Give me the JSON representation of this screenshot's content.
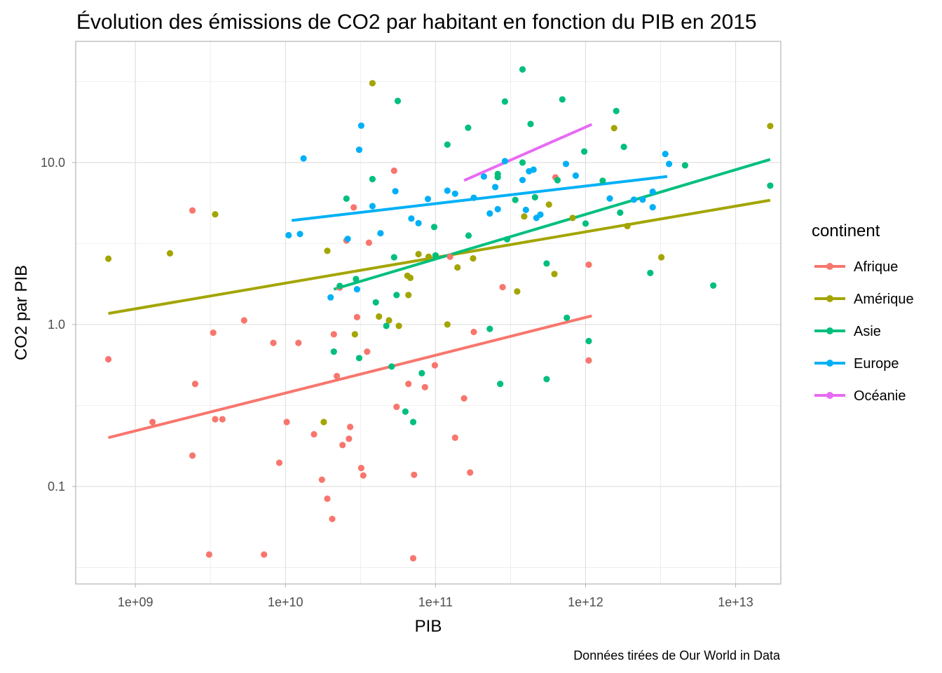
{
  "chart_data": {
    "type": "scatter",
    "title": "Évolution des émissions de CO2 par habitant en fonction du PIB en 2015",
    "xlabel": "PIB",
    "ylabel": "CO2 par PIB",
    "caption": "Données tirées de Our World in Data",
    "x_scale": "log10",
    "y_scale": "log10",
    "xlim": [
      400000000,
      20000000000000
    ],
    "ylim": [
      0.025,
      56
    ],
    "x_ticks": [
      {
        "value": 1000000000,
        "label": "1e+09"
      },
      {
        "value": 10000000000,
        "label": "1e+10"
      },
      {
        "value": 100000000000,
        "label": "1e+11"
      },
      {
        "value": 1000000000000,
        "label": "1e+12"
      },
      {
        "value": 10000000000000,
        "label": "1e+13"
      }
    ],
    "y_ticks": [
      {
        "value": 0.1,
        "label": "0.1"
      },
      {
        "value": 1,
        "label": "1.0"
      },
      {
        "value": 10,
        "label": "10.0"
      }
    ],
    "grid": true,
    "legend": {
      "title": "continent",
      "position": "right"
    },
    "series": [
      {
        "name": "Afrique",
        "color": "#F8766D",
        "points": [
          [
            660000000.0,
            0.61
          ],
          [
            1300000000.0,
            0.25
          ],
          [
            2400000000.0,
            5.06
          ],
          [
            2400000000.0,
            0.155
          ],
          [
            2500000000.0,
            0.43
          ],
          [
            3100000000.0,
            0.038
          ],
          [
            3300000000.0,
            0.89
          ],
          [
            3400000000.0,
            0.26
          ],
          [
            3800000000.0,
            0.26
          ],
          [
            5300000000.0,
            1.06
          ],
          [
            7200000000.0,
            0.038
          ],
          [
            8300000000.0,
            0.77
          ],
          [
            9100000000.0,
            0.14
          ],
          [
            10200000000.0,
            0.25
          ],
          [
            12200000000.0,
            0.77
          ],
          [
            15500000000.0,
            0.21
          ],
          [
            17500000000.0,
            0.11
          ],
          [
            19000000000.0,
            0.084
          ],
          [
            20500000000.0,
            0.063
          ],
          [
            21000000000.0,
            0.87
          ],
          [
            22000000000.0,
            0.48
          ],
          [
            23000000000.0,
            1.69
          ],
          [
            24000000000.0,
            0.18
          ],
          [
            25500000000.0,
            3.3
          ],
          [
            26500000000.0,
            0.197
          ],
          [
            27000000000.0,
            0.233
          ],
          [
            28500000000.0,
            5.28
          ],
          [
            30000000000.0,
            1.11
          ],
          [
            32000000000.0,
            0.13
          ],
          [
            33000000000.0,
            0.117
          ],
          [
            35000000000.0,
            0.68
          ],
          [
            36000000000.0,
            3.2
          ],
          [
            53000000000.0,
            8.9
          ],
          [
            55000000000.0,
            0.31
          ],
          [
            66000000000.0,
            0.43
          ],
          [
            71000000000.0,
            0.036
          ],
          [
            72000000000.0,
            0.118
          ],
          [
            85000000000.0,
            0.41
          ],
          [
            99000000000.0,
            0.56
          ],
          [
            125000000000.0,
            2.62
          ],
          [
            135000000000.0,
            0.2
          ],
          [
            170000000000.0,
            0.122
          ],
          [
            155000000000.0,
            0.35
          ],
          [
            180000000000.0,
            0.9
          ],
          [
            280000000000.0,
            1.7
          ],
          [
            630000000000.0,
            8.1
          ],
          [
            1050000000000.0,
            2.34
          ],
          [
            1050000000000.0,
            0.6
          ]
        ],
        "trend": [
          [
            660000000.0,
            0.2
          ],
          [
            1100000000000.0,
            1.13
          ]
        ]
      },
      {
        "name": "Amérique",
        "color": "#A3A500",
        "points": [
          [
            660000000.0,
            2.55
          ],
          [
            1700000000.0,
            2.75
          ],
          [
            3400000000.0,
            4.79
          ],
          [
            18000000000.0,
            0.25
          ],
          [
            19000000000.0,
            2.85
          ],
          [
            29000000000.0,
            0.87
          ],
          [
            38000000000.0,
            30.9
          ],
          [
            42000000000.0,
            1.12
          ],
          [
            49000000000.0,
            1.06
          ],
          [
            57000000000.0,
            0.98
          ],
          [
            65000000000.0,
            2.0
          ],
          [
            66000000000.0,
            1.52
          ],
          [
            68000000000.0,
            1.94
          ],
          [
            77000000000.0,
            2.72
          ],
          [
            90000000000.0,
            2.62
          ],
          [
            120000000000.0,
            1.0
          ],
          [
            140000000000.0,
            2.25
          ],
          [
            178000000000.0,
            2.56
          ],
          [
            350000000000.0,
            1.6
          ],
          [
            390000000000.0,
            4.65
          ],
          [
            570000000000.0,
            5.5
          ],
          [
            620000000000.0,
            2.05
          ],
          [
            820000000000.0,
            4.55
          ],
          [
            1550000000000.0,
            16.3
          ],
          [
            1900000000000.0,
            4.05
          ],
          [
            3200000000000.0,
            2.6
          ],
          [
            17000000000000.0,
            16.8
          ]
        ],
        "trend": [
          [
            660000000.0,
            1.17
          ],
          [
            17000000000000.0,
            5.85
          ]
        ]
      },
      {
        "name": "Asie",
        "color": "#00BF7D",
        "points": [
          [
            21000000000.0,
            0.68
          ],
          [
            23000000000.0,
            1.73
          ],
          [
            25500000000.0,
            5.98
          ],
          [
            29500000000.0,
            1.91
          ],
          [
            31000000000.0,
            0.62
          ],
          [
            38000000000.0,
            7.9
          ],
          [
            40000000000.0,
            1.37
          ],
          [
            47000000000.0,
            0.98
          ],
          [
            51000000000.0,
            0.55
          ],
          [
            53000000000.0,
            2.6
          ],
          [
            55000000000.0,
            1.52
          ],
          [
            56000000000.0,
            24.0
          ],
          [
            63000000000.0,
            0.29
          ],
          [
            71000000000.0,
            0.25
          ],
          [
            81000000000.0,
            0.5
          ],
          [
            100000000000.0,
            2.67
          ],
          [
            98000000000.0,
            4.0
          ],
          [
            120000000000.0,
            12.9
          ],
          [
            165000000000.0,
            16.4
          ],
          [
            166000000000.0,
            3.54
          ],
          [
            230000000000.0,
            0.94
          ],
          [
            260000000000.0,
            8.12
          ],
          [
            270000000000.0,
            0.43
          ],
          [
            290000000000.0,
            23.8
          ],
          [
            260000000000.0,
            8.5
          ],
          [
            300000000000.0,
            3.36
          ],
          [
            340000000000.0,
            5.88
          ],
          [
            380000000000.0,
            37.6
          ],
          [
            380000000000.0,
            10.0
          ],
          [
            430000000000.0,
            17.3
          ],
          [
            460000000000.0,
            6.1
          ],
          [
            550000000000.0,
            2.38
          ],
          [
            550000000000.0,
            0.46
          ],
          [
            650000000000.0,
            7.78
          ],
          [
            700000000000.0,
            24.5
          ],
          [
            750000000000.0,
            1.1
          ],
          [
            980000000000.0,
            11.7
          ],
          [
            1000000000000.0,
            4.2
          ],
          [
            1050000000000.0,
            0.79
          ],
          [
            1300000000000.0,
            7.72
          ],
          [
            1600000000000.0,
            20.8
          ],
          [
            1700000000000.0,
            4.9
          ],
          [
            1800000000000.0,
            12.5
          ],
          [
            2700000000000.0,
            2.08
          ],
          [
            4600000000000.0,
            9.6
          ],
          [
            7100000000000.0,
            1.74
          ],
          [
            17000000000000.0,
            7.2
          ]
        ],
        "trend": [
          [
            21000000000.0,
            1.65
          ],
          [
            17000000000000.0,
            10.45
          ]
        ]
      },
      {
        "name": "Europe",
        "color": "#00B0F6",
        "points": [
          [
            10500000000.0,
            3.56
          ],
          [
            12500000000.0,
            3.62
          ],
          [
            13200000000.0,
            10.6
          ],
          [
            26000000000.0,
            3.38
          ],
          [
            20000000000.0,
            1.47
          ],
          [
            30000000000.0,
            1.65
          ],
          [
            31000000000.0,
            12.0
          ],
          [
            32000000000.0,
            16.9
          ],
          [
            38000000000.0,
            5.38
          ],
          [
            43000000000.0,
            3.66
          ],
          [
            54000000000.0,
            6.65
          ],
          [
            69000000000.0,
            4.51
          ],
          [
            77000000000.0,
            4.22
          ],
          [
            89000000000.0,
            5.95
          ],
          [
            120000000000.0,
            6.7
          ],
          [
            135000000000.0,
            6.42
          ],
          [
            180000000000.0,
            6.06
          ],
          [
            210000000000.0,
            8.2
          ],
          [
            230000000000.0,
            4.85
          ],
          [
            250000000000.0,
            7.05
          ],
          [
            260000000000.0,
            5.15
          ],
          [
            290000000000.0,
            10.2
          ],
          [
            380000000000.0,
            7.8
          ],
          [
            400000000000.0,
            5.1
          ],
          [
            420000000000.0,
            8.83
          ],
          [
            450000000000.0,
            9.04
          ],
          [
            470000000000.0,
            4.55
          ],
          [
            500000000000.0,
            4.77
          ],
          [
            740000000000.0,
            9.8
          ],
          [
            860000000000.0,
            8.3
          ],
          [
            1450000000000.0,
            6.0
          ],
          [
            2100000000000.0,
            5.9
          ],
          [
            2400000000000.0,
            5.9
          ],
          [
            2800000000000.0,
            6.6
          ],
          [
            2800000000000.0,
            5.3
          ],
          [
            3400000000000.0,
            11.3
          ],
          [
            3600000000000.0,
            9.8
          ]
        ],
        "trend": [
          [
            11000000000.0,
            4.39
          ],
          [
            3500000000000.0,
            8.2
          ]
        ]
      },
      {
        "name": "Océanie",
        "color": "#E76BF3",
        "points": [],
        "trend": [
          [
            155000000000.0,
            7.75
          ],
          [
            1100000000000.0,
            17.2
          ]
        ]
      }
    ]
  }
}
